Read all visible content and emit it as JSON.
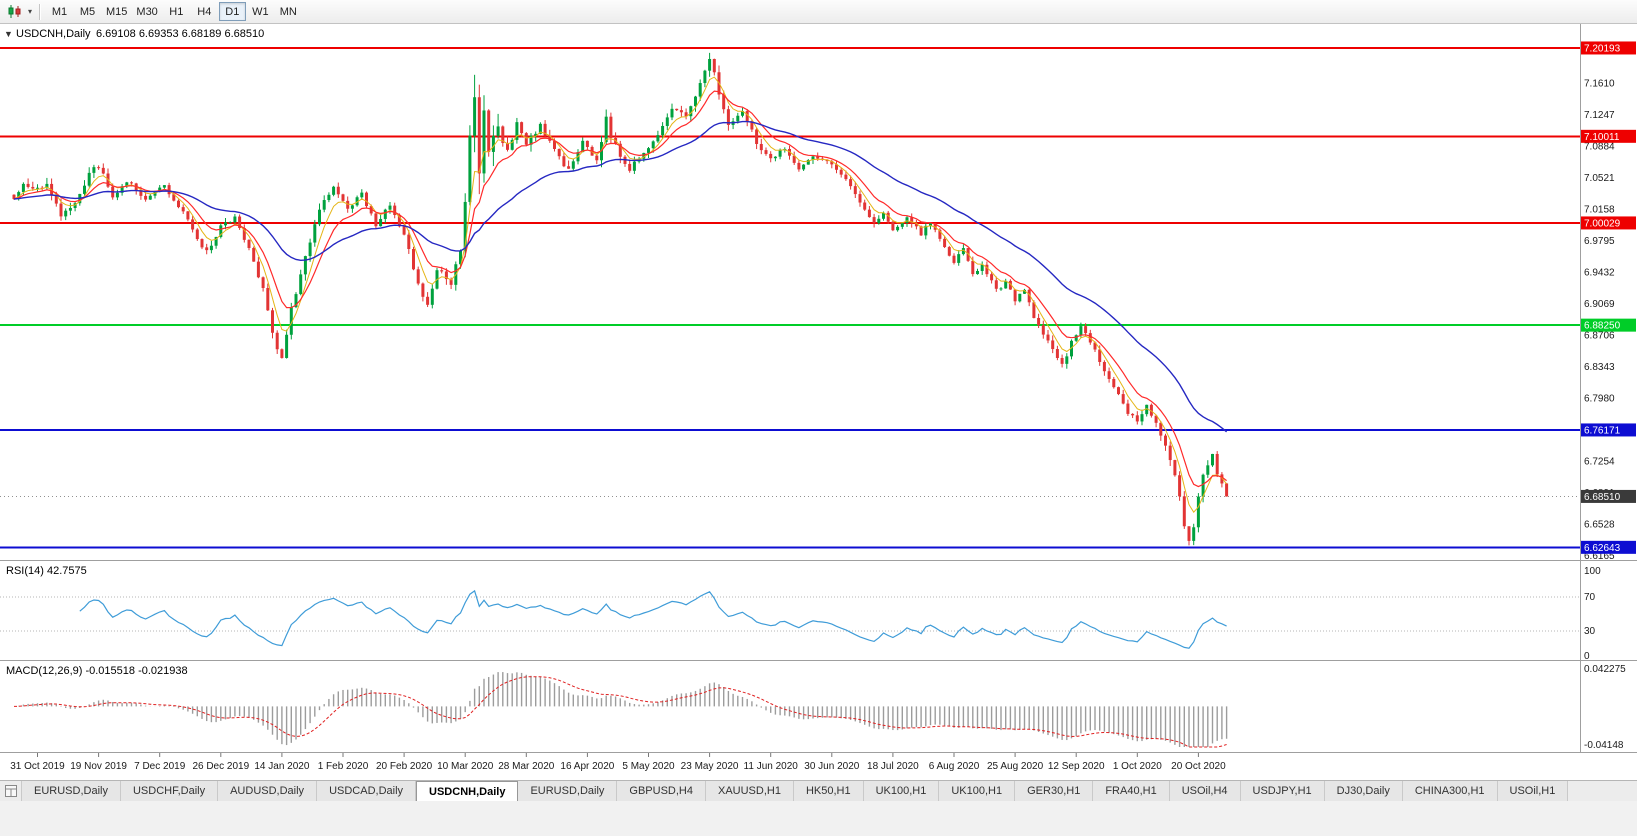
{
  "toolbar": {
    "chart_icon": "candlestick-chart",
    "dropdown_caret": "▾",
    "timeframes": [
      {
        "label": "M1",
        "active": false
      },
      {
        "label": "M5",
        "active": false
      },
      {
        "label": "M15",
        "active": false
      },
      {
        "label": "M30",
        "active": false
      },
      {
        "label": "H1",
        "active": false
      },
      {
        "label": "H4",
        "active": false
      },
      {
        "label": "D1",
        "active": true
      },
      {
        "label": "W1",
        "active": false
      },
      {
        "label": "MN",
        "active": false
      }
    ]
  },
  "chart": {
    "collapse_arrow": "▼",
    "symbol_title": "USDCNH,Daily",
    "ohlc_line": "6.69108 6.69353 6.68189 6.68510"
  },
  "chart_data": {
    "type": "candlestick",
    "symbol": "USDCNH",
    "timeframe": "Daily",
    "open": 6.69108,
    "high": 6.69353,
    "low": 6.68189,
    "close": 6.6851,
    "days": 259,
    "seed": 20201029,
    "anchors": [
      [
        0,
        7.03,
        0.01
      ],
      [
        2,
        7.044,
        0.01
      ],
      [
        5,
        7.038,
        0.012
      ],
      [
        7,
        7.048,
        0.012
      ],
      [
        10,
        7.008,
        0.012
      ],
      [
        13,
        7.022,
        0.01
      ],
      [
        17,
        7.067,
        0.012
      ],
      [
        19,
        7.058,
        0.01
      ],
      [
        21,
        7.032,
        0.01
      ],
      [
        24,
        7.048,
        0.01
      ],
      [
        28,
        7.028,
        0.009
      ],
      [
        32,
        7.042,
        0.009
      ],
      [
        36,
        7.012,
        0.009
      ],
      [
        39,
        6.982,
        0.01
      ],
      [
        41,
        6.966,
        0.01
      ],
      [
        44,
        6.996,
        0.009
      ],
      [
        47,
        7.006,
        0.008
      ],
      [
        50,
        6.972,
        0.009
      ],
      [
        53,
        6.922,
        0.011
      ],
      [
        55,
        6.872,
        0.013
      ],
      [
        57,
        6.844,
        0.013
      ],
      [
        59,
        6.902,
        0.013
      ],
      [
        62,
        6.962,
        0.012
      ],
      [
        65,
        7.014,
        0.012
      ],
      [
        68,
        7.042,
        0.01
      ],
      [
        71,
        7.014,
        0.009
      ],
      [
        74,
        7.034,
        0.009
      ],
      [
        77,
        6.998,
        0.009
      ],
      [
        80,
        7.022,
        0.009
      ],
      [
        83,
        6.986,
        0.01
      ],
      [
        86,
        6.93,
        0.012
      ],
      [
        88,
        6.906,
        0.012
      ],
      [
        90,
        6.948,
        0.012
      ],
      [
        93,
        6.932,
        0.011
      ],
      [
        95,
        6.972,
        0.014
      ],
      [
        96,
        7.022,
        0.02
      ],
      [
        97,
        7.102,
        0.045
      ],
      [
        98,
        7.152,
        0.05
      ],
      [
        99,
        7.062,
        0.045
      ],
      [
        100,
        7.122,
        0.04
      ],
      [
        101,
        7.072,
        0.035
      ],
      [
        103,
        7.112,
        0.028
      ],
      [
        105,
        7.082,
        0.022
      ],
      [
        107,
        7.116,
        0.018
      ],
      [
        109,
        7.092,
        0.015
      ],
      [
        112,
        7.112,
        0.013
      ],
      [
        115,
        7.082,
        0.012
      ],
      [
        118,
        7.062,
        0.012
      ],
      [
        121,
        7.092,
        0.01
      ],
      [
        124,
        7.072,
        0.012
      ],
      [
        126,
        7.118,
        0.018
      ],
      [
        128,
        7.088,
        0.014
      ],
      [
        131,
        7.062,
        0.01
      ],
      [
        134,
        7.082,
        0.01
      ],
      [
        137,
        7.102,
        0.01
      ],
      [
        140,
        7.132,
        0.01
      ],
      [
        143,
        7.122,
        0.01
      ],
      [
        146,
        7.162,
        0.012
      ],
      [
        148,
        7.192,
        0.012
      ],
      [
        150,
        7.152,
        0.014
      ],
      [
        152,
        7.112,
        0.014
      ],
      [
        155,
        7.132,
        0.01
      ],
      [
        158,
        7.092,
        0.01
      ],
      [
        161,
        7.072,
        0.01
      ],
      [
        164,
        7.088,
        0.009
      ],
      [
        167,
        7.062,
        0.009
      ],
      [
        170,
        7.078,
        0.008
      ],
      [
        174,
        7.068,
        0.008
      ],
      [
        177,
        7.052,
        0.008
      ],
      [
        180,
        7.022,
        0.009
      ],
      [
        183,
        6.998,
        0.009
      ],
      [
        185,
        7.012,
        0.008
      ],
      [
        187,
        6.992,
        0.008
      ],
      [
        190,
        7.006,
        0.008
      ],
      [
        193,
        6.988,
        0.008
      ],
      [
        195,
        7.002,
        0.008
      ],
      [
        198,
        6.972,
        0.009
      ],
      [
        200,
        6.952,
        0.01
      ],
      [
        202,
        6.972,
        0.009
      ],
      [
        204,
        6.942,
        0.009
      ],
      [
        206,
        6.952,
        0.008
      ],
      [
        209,
        6.922,
        0.009
      ],
      [
        211,
        6.932,
        0.008
      ],
      [
        213,
        6.912,
        0.009
      ],
      [
        215,
        6.922,
        0.008
      ],
      [
        217,
        6.892,
        0.009
      ],
      [
        219,
        6.872,
        0.01
      ],
      [
        221,
        6.852,
        0.01
      ],
      [
        223,
        6.836,
        0.01
      ],
      [
        225,
        6.862,
        0.009
      ],
      [
        227,
        6.882,
        0.009
      ],
      [
        229,
        6.862,
        0.008
      ],
      [
        231,
        6.842,
        0.009
      ],
      [
        233,
        6.822,
        0.009
      ],
      [
        235,
        6.802,
        0.009
      ],
      [
        237,
        6.782,
        0.01
      ],
      [
        239,
        6.772,
        0.01
      ],
      [
        241,
        6.792,
        0.008
      ],
      [
        243,
        6.768,
        0.01
      ],
      [
        245,
        6.742,
        0.012
      ],
      [
        247,
        6.712,
        0.012
      ],
      [
        248,
        6.682,
        0.013
      ],
      [
        249,
        6.652,
        0.013
      ],
      [
        250,
        6.635,
        0.012
      ],
      [
        251,
        6.652,
        0.01
      ],
      [
        252,
        6.682,
        0.012
      ],
      [
        253,
        6.712,
        0.012
      ],
      [
        254,
        6.722,
        0.01
      ],
      [
        255,
        6.732,
        0.01
      ],
      [
        256,
        6.712,
        0.009
      ],
      [
        257,
        6.698,
        0.008
      ],
      [
        258,
        6.6851,
        0.008
      ]
    ],
    "x_labels": [
      "31 Oct 2019",
      "19 Nov 2019",
      "7 Dec 2019",
      "26 Dec 2019",
      "14 Jan 2020",
      "1 Feb 2020",
      "20 Feb 2020",
      "10 Mar 2020",
      "28 Mar 2020",
      "16 Apr 2020",
      "5 May 2020",
      "23 May 2020",
      "11 Jun 2020",
      "30 Jun 2020",
      "18 Jul 2020",
      "6 Aug 2020",
      "25 Aug 2020",
      "12 Sep 2020",
      "1 Oct 2020",
      "20 Oct 2020"
    ],
    "label_start_day": 5,
    "label_step": 13,
    "price_ticks": [
      7.161,
      7.1247,
      7.0884,
      7.0521,
      7.0158,
      6.9795,
      6.9432,
      6.9069,
      6.8706,
      6.8343,
      6.798,
      6.7617,
      6.7254,
      6.6891,
      6.6528,
      6.6165
    ],
    "h_lines": [
      {
        "price": 7.20193,
        "label": "7.20193",
        "color": "#ee0000",
        "width": 2
      },
      {
        "price": 7.10011,
        "label": "7.10011",
        "color": "#ee0000",
        "width": 2
      },
      {
        "price": 7.00029,
        "label": "7.00029",
        "color": "#ee0000",
        "width": 2
      },
      {
        "price": 6.8825,
        "label": "6.88250",
        "color": "#00cd28",
        "width": 2
      },
      {
        "price": 6.76171,
        "label": "6.76171",
        "color": "#0d0dd2",
        "width": 2
      },
      {
        "price": 6.62643,
        "label": "6.62643",
        "color": "#0d0dd2",
        "width": 2
      }
    ],
    "current_price": {
      "price": 6.6851,
      "label": "6.68510",
      "color": "#3a3a3a"
    },
    "colors": {
      "up": "#00a13e",
      "down": "#e23434",
      "background": "#ffffff",
      "axis_text": "#1a1a1a",
      "grid_dotted": "#909090"
    },
    "moving_averages": [
      {
        "name": "ma-fast",
        "period": 5,
        "color": "#e5b516",
        "width": 1
      },
      {
        "name": "ma-mid",
        "period": 10,
        "color": "#ff2a2a",
        "width": 1.2
      },
      {
        "name": "ma-slow",
        "period": 34,
        "color": "#2628c2",
        "width": 1.4
      }
    ],
    "rsi": {
      "title": "RSI(14) 42.7575",
      "period": 14,
      "value": 42.7575,
      "levels": [
        70,
        30
      ],
      "scale_labels": [
        100,
        70,
        30,
        0
      ],
      "color": "#3f9cd8"
    },
    "macd": {
      "title": "MACD(12,26,9) -0.015518 -0.021938",
      "fast": 12,
      "slow": 26,
      "signal": 9,
      "macd_value": -0.015518,
      "signal_value": -0.021938,
      "scale_max": 0.042275,
      "scale_min": -0.04148,
      "scale_max_label": "0.042275",
      "scale_min_label": "-0.04148",
      "hist_color": "#9c9c9c",
      "signal_color": "#e02020"
    }
  },
  "tabs": [
    {
      "label": "EURUSD,Daily",
      "active": false
    },
    {
      "label": "USDCHF,Daily",
      "active": false
    },
    {
      "label": "AUDUSD,Daily",
      "active": false
    },
    {
      "label": "USDCAD,Daily",
      "active": false
    },
    {
      "label": "USDCNH,Daily",
      "active": true
    },
    {
      "label": "EURUSD,Daily",
      "active": false
    },
    {
      "label": "GBPUSD,H4",
      "active": false
    },
    {
      "label": "XAUUSD,H1",
      "active": false
    },
    {
      "label": "HK50,H1",
      "active": false
    },
    {
      "label": "UK100,H1",
      "active": false
    },
    {
      "label": "UK100,H1",
      "active": false
    },
    {
      "label": "GER30,H1",
      "active": false
    },
    {
      "label": "FRA40,H1",
      "active": false
    },
    {
      "label": "USOil,H4",
      "active": false
    },
    {
      "label": "USDJPY,H1",
      "active": false
    },
    {
      "label": "DJ30,Daily",
      "active": false
    },
    {
      "label": "CHINA300,H1",
      "active": false
    },
    {
      "label": "USOil,H1",
      "active": false
    }
  ]
}
